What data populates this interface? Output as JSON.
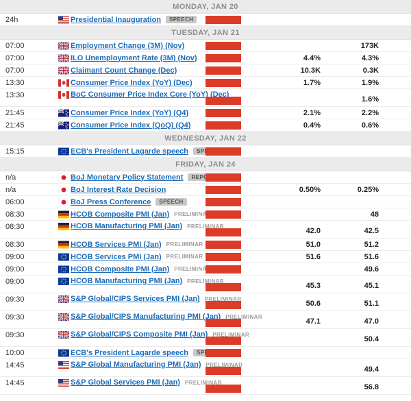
{
  "colors": {
    "volatility_bar": "#dc3b28",
    "link": "#1b6bb8",
    "day_header_bg": "#ebebeb",
    "day_header_text": "#8c8c8c",
    "badge_bg": "#c8c8c8"
  },
  "sections": [
    {
      "header": "MONDAY, JAN 20",
      "rows": [
        {
          "time": "24h",
          "flag": "us",
          "name": "Presidential Inauguration",
          "badge": "SPEECH",
          "actual": "",
          "previous": "",
          "two_line": false
        }
      ]
    },
    {
      "header": "TUESDAY, JAN 21",
      "rows": [
        {
          "time": "07:00",
          "flag": "gb",
          "name": "Employment Change (3M) (Nov)",
          "actual": "",
          "previous": "173K",
          "two_line": false
        },
        {
          "time": "07:00",
          "flag": "gb",
          "name": "ILO Unemployment Rate (3M) (Nov)",
          "actual": "4.4%",
          "previous": "4.3%",
          "two_line": false
        },
        {
          "time": "07:00",
          "flag": "gb",
          "name": "Claimant Count Change (Dec)",
          "actual": "10.3K",
          "previous": "0.3K",
          "two_line": false
        },
        {
          "time": "13:30",
          "flag": "ca",
          "name": "Consumer Price Index (YoY) (Dec)",
          "actual": "1.7%",
          "previous": "1.9%",
          "two_line": false
        },
        {
          "time": "13:30",
          "flag": "ca",
          "name": "BoC Consumer Price Index Core (YoY) (Dec)",
          "actual": "",
          "previous": "1.6%",
          "two_line": true
        },
        {
          "time": "21:45",
          "flag": "nz",
          "name": "Consumer Price Index (YoY) (Q4)",
          "actual": "2.1%",
          "previous": "2.2%",
          "two_line": false
        },
        {
          "time": "21:45",
          "flag": "nz",
          "name": "Consumer Price Index (QoQ) (Q4)",
          "actual": "0.4%",
          "previous": "0.6%",
          "two_line": false
        }
      ]
    },
    {
      "header": "WEDNESDAY, JAN 22",
      "rows": [
        {
          "time": "15:15",
          "flag": "eu",
          "name": "ECB's President Lagarde speech",
          "badge": "SPEECH",
          "actual": "",
          "previous": "",
          "two_line": false
        }
      ]
    },
    {
      "header": "FRIDAY, JAN 24",
      "rows": [
        {
          "time": "n/a",
          "flag": "jp",
          "name": "BoJ Monetary Policy Statement",
          "badge": "REPORT",
          "actual": "",
          "previous": "",
          "two_line": false
        },
        {
          "time": "n/a",
          "flag": "jp",
          "name": "BoJ Interest Rate Decision",
          "actual": "0.50%",
          "previous": "0.25%",
          "two_line": false
        },
        {
          "time": "06:00",
          "flag": "jp",
          "name": "BoJ Press Conference",
          "badge": "SPEECH",
          "actual": "",
          "previous": "",
          "two_line": false
        },
        {
          "time": "08:30",
          "flag": "de",
          "name": "HCOB Composite PMI (Jan)",
          "tag": "PRELIMINAR",
          "actual": "",
          "previous": "48",
          "two_line": false
        },
        {
          "time": "08:30",
          "flag": "de",
          "name": "HCOB Manufacturing PMI (Jan)",
          "tag": "PRELIMINAR",
          "actual": "42.0",
          "previous": "42.5",
          "two_line": true
        },
        {
          "time": "08:30",
          "flag": "de",
          "name": "HCOB Services PMI (Jan)",
          "tag": "PRELIMINAR",
          "actual": "51.0",
          "previous": "51.2",
          "two_line": false
        },
        {
          "time": "09:00",
          "flag": "eu",
          "name": "HCOB Services PMI (Jan)",
          "tag": "PRELIMINAR",
          "actual": "51.6",
          "previous": "51.6",
          "two_line": false
        },
        {
          "time": "09:00",
          "flag": "eu",
          "name": "HCOB Composite PMI (Jan)",
          "tag": "PRELIMINAR",
          "actual": "",
          "previous": "49.6",
          "two_line": false
        },
        {
          "time": "09:00",
          "flag": "eu",
          "name": "HCOB Manufacturing PMI (Jan)",
          "tag": "PRELIMINAR",
          "actual": "45.3",
          "previous": "45.1",
          "two_line": true
        },
        {
          "time": "09:30",
          "flag": "gb",
          "name": "S&P Global/CIPS Services PMI (Jan)",
          "tag": "PRELIMINAR",
          "actual": "50.6",
          "previous": "51.1",
          "two_line": true
        },
        {
          "time": "09:30",
          "flag": "gb",
          "name": "S&P Global/CIPS Manufacturing PMI (Jan)",
          "tag": "PRELIMINAR",
          "actual": "47.1",
          "previous": "47.0",
          "two_line": true
        },
        {
          "time": "09:30",
          "flag": "gb",
          "name": "S&P Global/CIPS Composite PMI (Jan)",
          "tag": "PRELIMINAR",
          "actual": "",
          "previous": "50.4",
          "two_line": true
        },
        {
          "time": "10:00",
          "flag": "eu",
          "name": "ECB's President Lagarde speech",
          "badge": "SPEECH",
          "actual": "",
          "previous": "",
          "two_line": false
        },
        {
          "time": "14:45",
          "flag": "us",
          "name": "S&P Global Manufacturing PMI (Jan)",
          "tag": "PRELIMINAR",
          "actual": "",
          "previous": "49.4",
          "two_line": true
        },
        {
          "time": "14:45",
          "flag": "us",
          "name": "S&P Global Services PMI (Jan)",
          "tag": "PRELIMINAR",
          "actual": "",
          "previous": "56.8",
          "two_line": true
        }
      ]
    }
  ]
}
